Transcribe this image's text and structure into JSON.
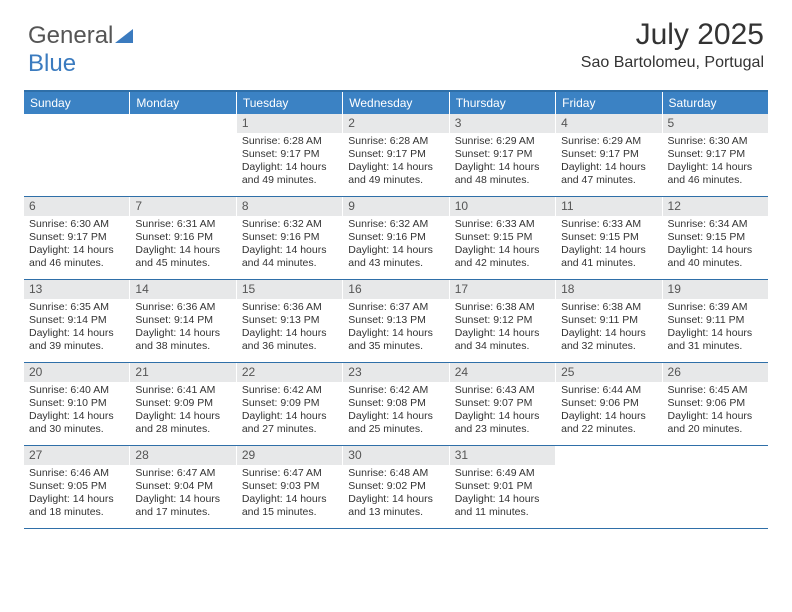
{
  "brand": {
    "part1": "General",
    "part2": "Blue"
  },
  "title": "July 2025",
  "location": "Sao Bartolomeu, Portugal",
  "colors": {
    "header_bg": "#3b82c4",
    "rule": "#2f6fa8",
    "daynum_bg": "#e7e8e9",
    "text": "#333333"
  },
  "weekdays": [
    "Sunday",
    "Monday",
    "Tuesday",
    "Wednesday",
    "Thursday",
    "Friday",
    "Saturday"
  ],
  "weeks": [
    [
      {
        "n": "",
        "empty": true
      },
      {
        "n": "",
        "empty": true
      },
      {
        "n": "1",
        "sr": "Sunrise: 6:28 AM",
        "ss": "Sunset: 9:17 PM",
        "dl": "Daylight: 14 hours and 49 minutes."
      },
      {
        "n": "2",
        "sr": "Sunrise: 6:28 AM",
        "ss": "Sunset: 9:17 PM",
        "dl": "Daylight: 14 hours and 49 minutes."
      },
      {
        "n": "3",
        "sr": "Sunrise: 6:29 AM",
        "ss": "Sunset: 9:17 PM",
        "dl": "Daylight: 14 hours and 48 minutes."
      },
      {
        "n": "4",
        "sr": "Sunrise: 6:29 AM",
        "ss": "Sunset: 9:17 PM",
        "dl": "Daylight: 14 hours and 47 minutes."
      },
      {
        "n": "5",
        "sr": "Sunrise: 6:30 AM",
        "ss": "Sunset: 9:17 PM",
        "dl": "Daylight: 14 hours and 46 minutes."
      }
    ],
    [
      {
        "n": "6",
        "sr": "Sunrise: 6:30 AM",
        "ss": "Sunset: 9:17 PM",
        "dl": "Daylight: 14 hours and 46 minutes."
      },
      {
        "n": "7",
        "sr": "Sunrise: 6:31 AM",
        "ss": "Sunset: 9:16 PM",
        "dl": "Daylight: 14 hours and 45 minutes."
      },
      {
        "n": "8",
        "sr": "Sunrise: 6:32 AM",
        "ss": "Sunset: 9:16 PM",
        "dl": "Daylight: 14 hours and 44 minutes."
      },
      {
        "n": "9",
        "sr": "Sunrise: 6:32 AM",
        "ss": "Sunset: 9:16 PM",
        "dl": "Daylight: 14 hours and 43 minutes."
      },
      {
        "n": "10",
        "sr": "Sunrise: 6:33 AM",
        "ss": "Sunset: 9:15 PM",
        "dl": "Daylight: 14 hours and 42 minutes."
      },
      {
        "n": "11",
        "sr": "Sunrise: 6:33 AM",
        "ss": "Sunset: 9:15 PM",
        "dl": "Daylight: 14 hours and 41 minutes."
      },
      {
        "n": "12",
        "sr": "Sunrise: 6:34 AM",
        "ss": "Sunset: 9:15 PM",
        "dl": "Daylight: 14 hours and 40 minutes."
      }
    ],
    [
      {
        "n": "13",
        "sr": "Sunrise: 6:35 AM",
        "ss": "Sunset: 9:14 PM",
        "dl": "Daylight: 14 hours and 39 minutes."
      },
      {
        "n": "14",
        "sr": "Sunrise: 6:36 AM",
        "ss": "Sunset: 9:14 PM",
        "dl": "Daylight: 14 hours and 38 minutes."
      },
      {
        "n": "15",
        "sr": "Sunrise: 6:36 AM",
        "ss": "Sunset: 9:13 PM",
        "dl": "Daylight: 14 hours and 36 minutes."
      },
      {
        "n": "16",
        "sr": "Sunrise: 6:37 AM",
        "ss": "Sunset: 9:13 PM",
        "dl": "Daylight: 14 hours and 35 minutes."
      },
      {
        "n": "17",
        "sr": "Sunrise: 6:38 AM",
        "ss": "Sunset: 9:12 PM",
        "dl": "Daylight: 14 hours and 34 minutes."
      },
      {
        "n": "18",
        "sr": "Sunrise: 6:38 AM",
        "ss": "Sunset: 9:11 PM",
        "dl": "Daylight: 14 hours and 32 minutes."
      },
      {
        "n": "19",
        "sr": "Sunrise: 6:39 AM",
        "ss": "Sunset: 9:11 PM",
        "dl": "Daylight: 14 hours and 31 minutes."
      }
    ],
    [
      {
        "n": "20",
        "sr": "Sunrise: 6:40 AM",
        "ss": "Sunset: 9:10 PM",
        "dl": "Daylight: 14 hours and 30 minutes."
      },
      {
        "n": "21",
        "sr": "Sunrise: 6:41 AM",
        "ss": "Sunset: 9:09 PM",
        "dl": "Daylight: 14 hours and 28 minutes."
      },
      {
        "n": "22",
        "sr": "Sunrise: 6:42 AM",
        "ss": "Sunset: 9:09 PM",
        "dl": "Daylight: 14 hours and 27 minutes."
      },
      {
        "n": "23",
        "sr": "Sunrise: 6:42 AM",
        "ss": "Sunset: 9:08 PM",
        "dl": "Daylight: 14 hours and 25 minutes."
      },
      {
        "n": "24",
        "sr": "Sunrise: 6:43 AM",
        "ss": "Sunset: 9:07 PM",
        "dl": "Daylight: 14 hours and 23 minutes."
      },
      {
        "n": "25",
        "sr": "Sunrise: 6:44 AM",
        "ss": "Sunset: 9:06 PM",
        "dl": "Daylight: 14 hours and 22 minutes."
      },
      {
        "n": "26",
        "sr": "Sunrise: 6:45 AM",
        "ss": "Sunset: 9:06 PM",
        "dl": "Daylight: 14 hours and 20 minutes."
      }
    ],
    [
      {
        "n": "27",
        "sr": "Sunrise: 6:46 AM",
        "ss": "Sunset: 9:05 PM",
        "dl": "Daylight: 14 hours and 18 minutes."
      },
      {
        "n": "28",
        "sr": "Sunrise: 6:47 AM",
        "ss": "Sunset: 9:04 PM",
        "dl": "Daylight: 14 hours and 17 minutes."
      },
      {
        "n": "29",
        "sr": "Sunrise: 6:47 AM",
        "ss": "Sunset: 9:03 PM",
        "dl": "Daylight: 14 hours and 15 minutes."
      },
      {
        "n": "30",
        "sr": "Sunrise: 6:48 AM",
        "ss": "Sunset: 9:02 PM",
        "dl": "Daylight: 14 hours and 13 minutes."
      },
      {
        "n": "31",
        "sr": "Sunrise: 6:49 AM",
        "ss": "Sunset: 9:01 PM",
        "dl": "Daylight: 14 hours and 11 minutes."
      },
      {
        "n": "",
        "empty": true
      },
      {
        "n": "",
        "empty": true
      }
    ]
  ]
}
